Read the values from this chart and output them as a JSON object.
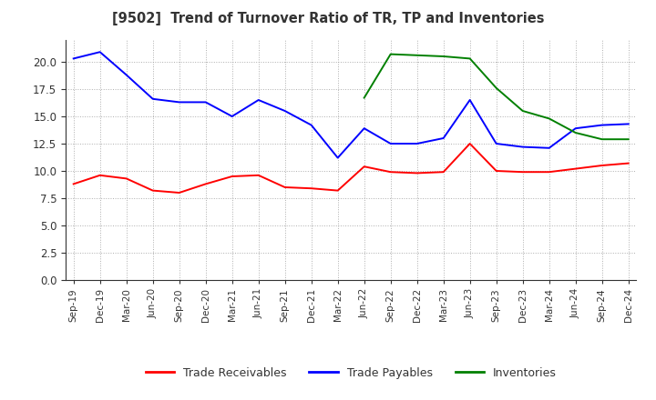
{
  "title": "[9502]  Trend of Turnover Ratio of TR, TP and Inventories",
  "x_labels": [
    "Sep-19",
    "Dec-19",
    "Mar-20",
    "Jun-20",
    "Sep-20",
    "Dec-20",
    "Mar-21",
    "Jun-21",
    "Sep-21",
    "Dec-21",
    "Mar-22",
    "Jun-22",
    "Sep-22",
    "Dec-22",
    "Mar-23",
    "Jun-23",
    "Sep-23",
    "Dec-23",
    "Mar-24",
    "Jun-24",
    "Sep-24",
    "Dec-24"
  ],
  "trade_receivables": [
    8.8,
    9.6,
    9.3,
    8.2,
    8.0,
    8.8,
    9.5,
    9.6,
    8.5,
    8.4,
    8.2,
    10.4,
    9.9,
    9.8,
    9.9,
    12.5,
    10.0,
    9.9,
    9.9,
    10.2,
    10.5,
    10.7
  ],
  "trade_payables": [
    20.3,
    20.9,
    18.8,
    16.6,
    16.3,
    16.3,
    15.0,
    16.5,
    15.5,
    14.2,
    11.2,
    13.9,
    12.5,
    12.5,
    13.0,
    16.5,
    12.5,
    12.2,
    12.1,
    13.9,
    14.2,
    14.3
  ],
  "inventories": [
    null,
    null,
    null,
    null,
    null,
    null,
    null,
    null,
    null,
    null,
    null,
    16.7,
    20.7,
    20.6,
    20.5,
    20.3,
    17.6,
    15.5,
    14.8,
    13.5,
    12.9,
    12.9
  ],
  "tr_color": "#ff0000",
  "tp_color": "#0000ff",
  "inv_color": "#008000",
  "ylim": [
    0.0,
    22.0
  ],
  "yticks": [
    0.0,
    2.5,
    5.0,
    7.5,
    10.0,
    12.5,
    15.0,
    17.5,
    20.0
  ],
  "background_color": "#ffffff",
  "grid_color": "#999999"
}
